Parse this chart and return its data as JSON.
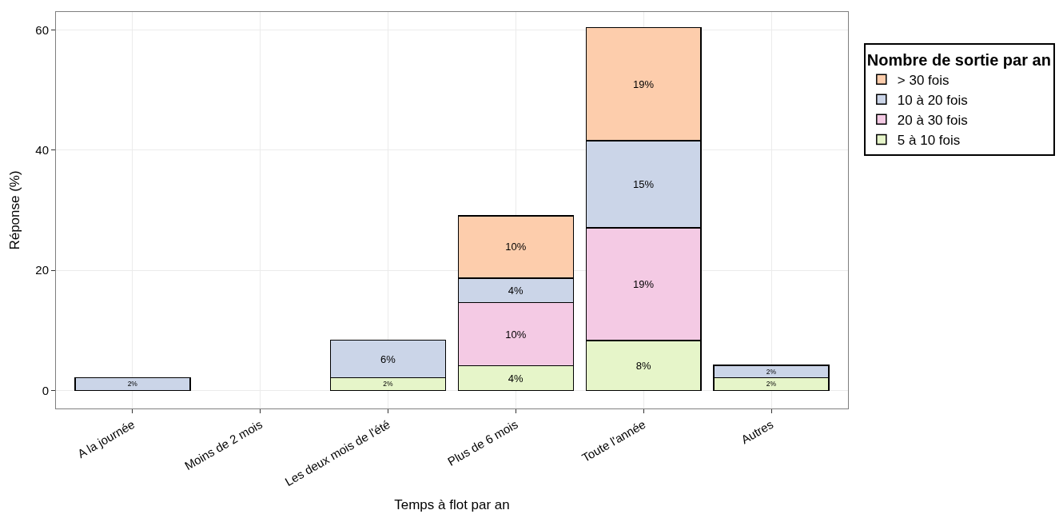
{
  "chart_data": {
    "type": "bar",
    "stacked": true,
    "xlabel": "Temps à flot par an",
    "ylabel": "Réponse (%)",
    "legend_title": "Nombre de sortie par an",
    "categories": [
      "A la journée",
      "Moins de 2 mois",
      "Les deux mois de l'été",
      "Plus de 6 mois",
      "Toute l'année",
      "Autres"
    ],
    "series": [
      {
        "name": "5 à 10 fois",
        "color": "#e6f5c9",
        "values": [
          null,
          null,
          2.1,
          4.1,
          8.3,
          2.1
        ],
        "value_labels": [
          null,
          null,
          "2%",
          "4%",
          "8%",
          "2%"
        ]
      },
      {
        "name": "20 à 30 fois",
        "color": "#f4cae4",
        "values": [
          null,
          null,
          null,
          10.5,
          18.8,
          null
        ],
        "value_labels": [
          null,
          null,
          null,
          "10%",
          "19%",
          null
        ]
      },
      {
        "name": "10 à 20 fois",
        "color": "#cbd5e8",
        "values": [
          2.1,
          null,
          6.3,
          4.1,
          14.5,
          2.1
        ],
        "value_labels": [
          "2%",
          null,
          "6%",
          "4%",
          "15%",
          "2%"
        ]
      },
      {
        "name": "> 30 fois",
        "color": "#fdcdac",
        "values": [
          null,
          null,
          null,
          10.4,
          18.8,
          null
        ],
        "value_labels": [
          null,
          null,
          null,
          "10%",
          "19%",
          null
        ]
      }
    ],
    "ylim": [
      -3,
      63
    ],
    "yticks": [
      0,
      20,
      40,
      60
    ],
    "grid": true,
    "legend": "right"
  }
}
